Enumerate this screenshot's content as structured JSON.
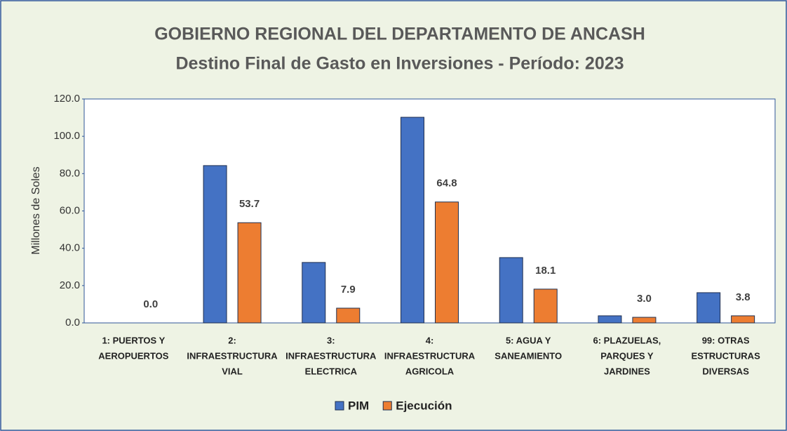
{
  "chart_data": {
    "type": "bar",
    "title": "GOBIERNO REGIONAL DEL DEPARTAMENTO DE ANCASH",
    "subtitle": "Destino Final de Gasto en Inversiones - Período: 2023",
    "y_label": "Millones de Soles",
    "categories": [
      [
        "1: PUERTOS Y",
        "AEROPUERTOS"
      ],
      [
        "2:",
        "INFRAESTRUCTURA",
        "VIAL"
      ],
      [
        "3:",
        "INFRAESTRUCTURA",
        "ELECTRICA"
      ],
      [
        "4:",
        "INFRAESTRUCTURA",
        "AGRICOLA"
      ],
      [
        "5: AGUA Y",
        "SANEAMIENTO"
      ],
      [
        "6: PLAZUELAS,",
        "PARQUES Y",
        "JARDINES"
      ],
      [
        "99: OTRAS",
        "ESTRUCTURAS",
        "DIVERSAS"
      ]
    ],
    "series": [
      {
        "name": "PIM",
        "color": "#4472c4",
        "values": [
          0,
          84.3,
          32.4,
          110.2,
          35.0,
          3.8,
          16.2
        ]
      },
      {
        "name": "Ejecución",
        "color": "#ed7d31",
        "values": [
          0,
          53.7,
          7.9,
          64.8,
          18.1,
          3.0,
          3.8
        ],
        "value_labels": [
          "0.0",
          "53.7",
          "7.9",
          "64.8",
          "18.1",
          "3.0",
          "3.8"
        ]
      }
    ],
    "ylim": [
      0,
      120
    ],
    "yticks": [
      {
        "value": 0,
        "label": "0.0"
      },
      {
        "value": 20,
        "label": "20.0"
      },
      {
        "value": 40,
        "label": "40.0"
      },
      {
        "value": 60,
        "label": "60.0"
      },
      {
        "value": 80,
        "label": "80.0"
      },
      {
        "value": 100,
        "label": "100.0"
      },
      {
        "value": 120,
        "label": "120.0"
      }
    ],
    "grid": false,
    "legend": "bottom"
  }
}
